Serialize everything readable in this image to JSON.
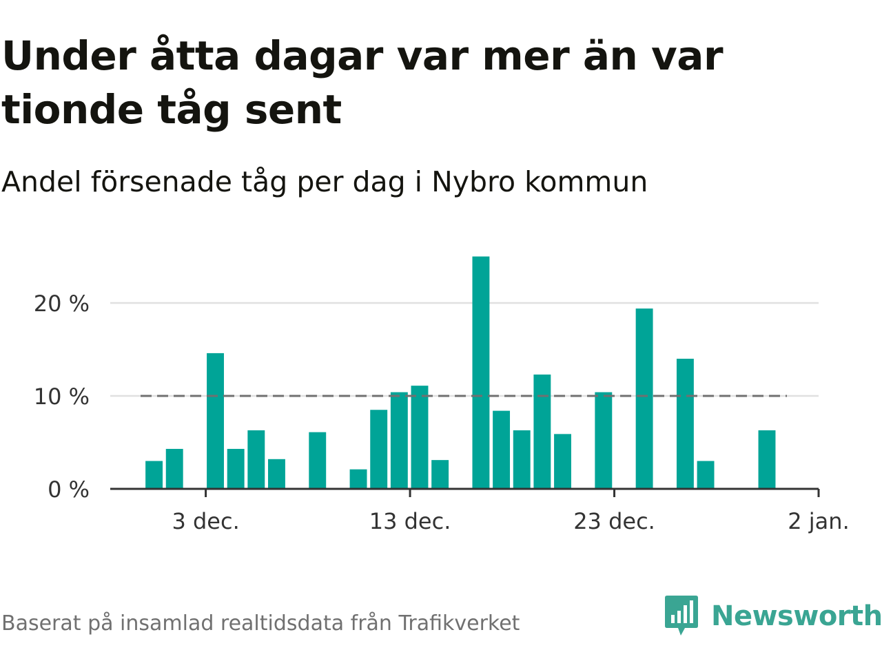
{
  "title": "Under åtta dagar var mer än var tionde tåg sent",
  "subtitle": "Andel försenade tåg per dag i Nybro kommun",
  "source": "Baserat på insamlad realtidsdata från Trafikverket",
  "logo": {
    "name": "Newsworthy",
    "icon": "newsworthy-chart-icon",
    "color": "#3aa593"
  },
  "chart_data": {
    "type": "bar",
    "title": "Under åtta dagar var mer än var tionde tåg sent",
    "subtitle": "Andel försenade tåg per dag i Nybro kommun",
    "xlabel": "",
    "ylabel": "",
    "x_domain": [
      "2021-11-29",
      "2022-01-02"
    ],
    "ylim": [
      0,
      25
    ],
    "y_ticks": [
      0,
      10,
      20
    ],
    "y_tick_labels": [
      "0 %",
      "10 %",
      "20 %"
    ],
    "x_ticks": [
      "2021-12-03",
      "2021-12-13",
      "2021-12-23",
      "2022-01-02"
    ],
    "x_tick_labels": [
      "3 dec.",
      "13 dec.",
      "23 dec.",
      "2 jan."
    ],
    "grid": true,
    "bar_color": "#00a497",
    "threshold": {
      "value": 10,
      "style": "dashed",
      "color": "#707070"
    },
    "dates": [
      "2021-11-30",
      "2021-12-01",
      "2021-12-02",
      "2021-12-03",
      "2021-12-04",
      "2021-12-05",
      "2021-12-06",
      "2021-12-07",
      "2021-12-08",
      "2021-12-09",
      "2021-12-10",
      "2021-12-11",
      "2021-12-12",
      "2021-12-13",
      "2021-12-14",
      "2021-12-15",
      "2021-12-16",
      "2021-12-17",
      "2021-12-18",
      "2021-12-19",
      "2021-12-20",
      "2021-12-21",
      "2021-12-22",
      "2021-12-23",
      "2021-12-24",
      "2021-12-25",
      "2021-12-26",
      "2021-12-27",
      "2021-12-28",
      "2021-12-29",
      "2021-12-30",
      "2021-12-31"
    ],
    "values": [
      3.0,
      4.3,
      0,
      14.6,
      4.3,
      6.3,
      3.2,
      0,
      6.1,
      0,
      2.1,
      8.5,
      10.4,
      11.1,
      3.1,
      0,
      25.0,
      8.4,
      6.3,
      12.3,
      5.9,
      0,
      10.4,
      0,
      19.4,
      0,
      14.0,
      3.0,
      0,
      0,
      6.3,
      0
    ]
  }
}
